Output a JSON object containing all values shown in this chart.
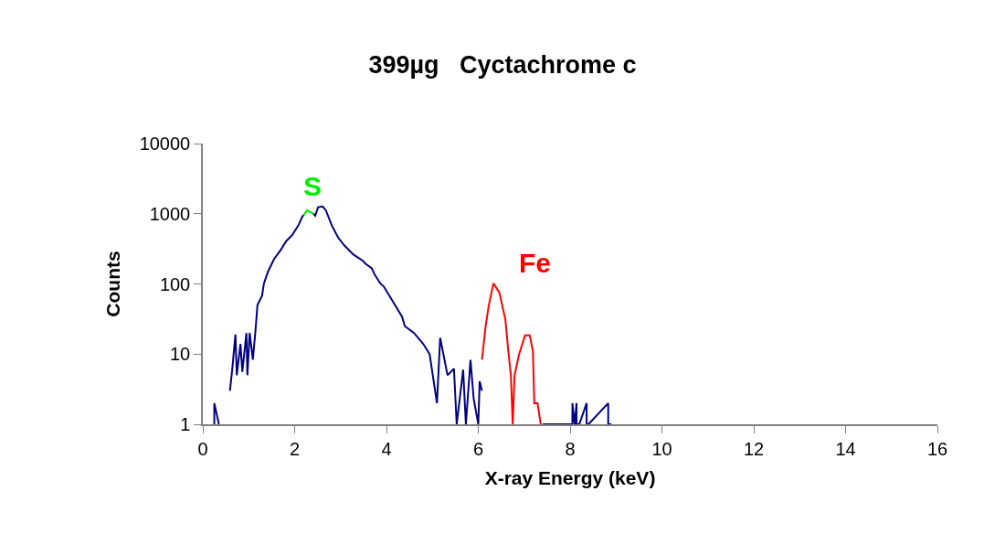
{
  "chart_data": {
    "type": "line",
    "title": "399µg   Cyctachrome c",
    "xlabel": "X-ray Energy (keV)",
    "ylabel": "Counts",
    "log": "y",
    "marker": "none",
    "line_style": "solid",
    "xlim": [
      0,
      16
    ],
    "xticks": [
      0,
      2,
      4,
      6,
      8,
      10,
      12,
      14,
      16
    ],
    "ylim": [
      1,
      10000
    ],
    "yticks": [
      1,
      10,
      100,
      1000,
      10000
    ],
    "series": [
      {
        "color": "#000080",
        "x": [
          0.25,
          0.25,
          0.35,
          null,
          0.59,
          0.64,
          0.71,
          0.74,
          0.82,
          0.86,
          0.95,
          0.97,
          1.02,
          1.09,
          1.15,
          1.19,
          1.29,
          1.33,
          1.42,
          1.55,
          1.69,
          1.82,
          1.95,
          2.08,
          2.17,
          2.2,
          null,
          2.41,
          2.45,
          2.51,
          2.61,
          2.68,
          2.81,
          2.95,
          3.08,
          3.28,
          3.48,
          3.54,
          3.68,
          3.74,
          3.87,
          3.94,
          4.14,
          4.34,
          4.4,
          4.6,
          4.8,
          4.94,
          5.1,
          5.17,
          5.33,
          5.47,
          5.53,
          5.67,
          5.73,
          5.83,
          5.9,
          6.0,
          6.03,
          6.08,
          null,
          7.4,
          8.05,
          8.05,
          8.1,
          8.14,
          8.14,
          8.2,
          8.36,
          8.36,
          8.4,
          8.83,
          8.83,
          8.9
        ],
        "values": [
          1,
          2,
          1,
          null,
          3,
          6,
          19,
          5,
          14,
          5.6,
          20,
          5,
          20,
          8.3,
          23,
          50,
          68,
          101,
          150,
          225,
          300,
          410,
          500,
          680,
          920,
          960,
          null,
          1000,
          940,
          1240,
          1270,
          1120,
          680,
          455,
          355,
          262,
          215,
          195,
          167,
          137,
          101,
          92,
          56,
          34,
          25,
          20,
          14,
          10,
          2,
          17,
          5,
          6.2,
          1,
          6,
          1,
          8.3,
          2.3,
          1,
          4.1,
          3,
          null,
          1,
          1,
          2,
          1,
          2,
          1,
          1,
          2,
          1,
          1,
          2,
          1,
          1
        ]
      },
      {
        "color": "#00ee00",
        "x": [
          2.2,
          2.27,
          2.34,
          2.41
        ],
        "values": [
          960,
          1120,
          1060,
          1000
        ]
      },
      {
        "color": "#ff0000",
        "x": [
          6.08,
          6.16,
          6.23,
          6.33,
          6.46,
          6.59,
          6.66,
          6.71,
          6.75,
          6.79,
          6.89,
          7.02,
          7.12,
          7.19,
          7.22,
          7.29,
          7.36
        ],
        "values": [
          8.3,
          25,
          50,
          102,
          75,
          31,
          10,
          5,
          1,
          5,
          10,
          18.5,
          18.5,
          11,
          2,
          2,
          1
        ]
      }
    ],
    "annotations": [
      "S",
      "Fe"
    ]
  }
}
